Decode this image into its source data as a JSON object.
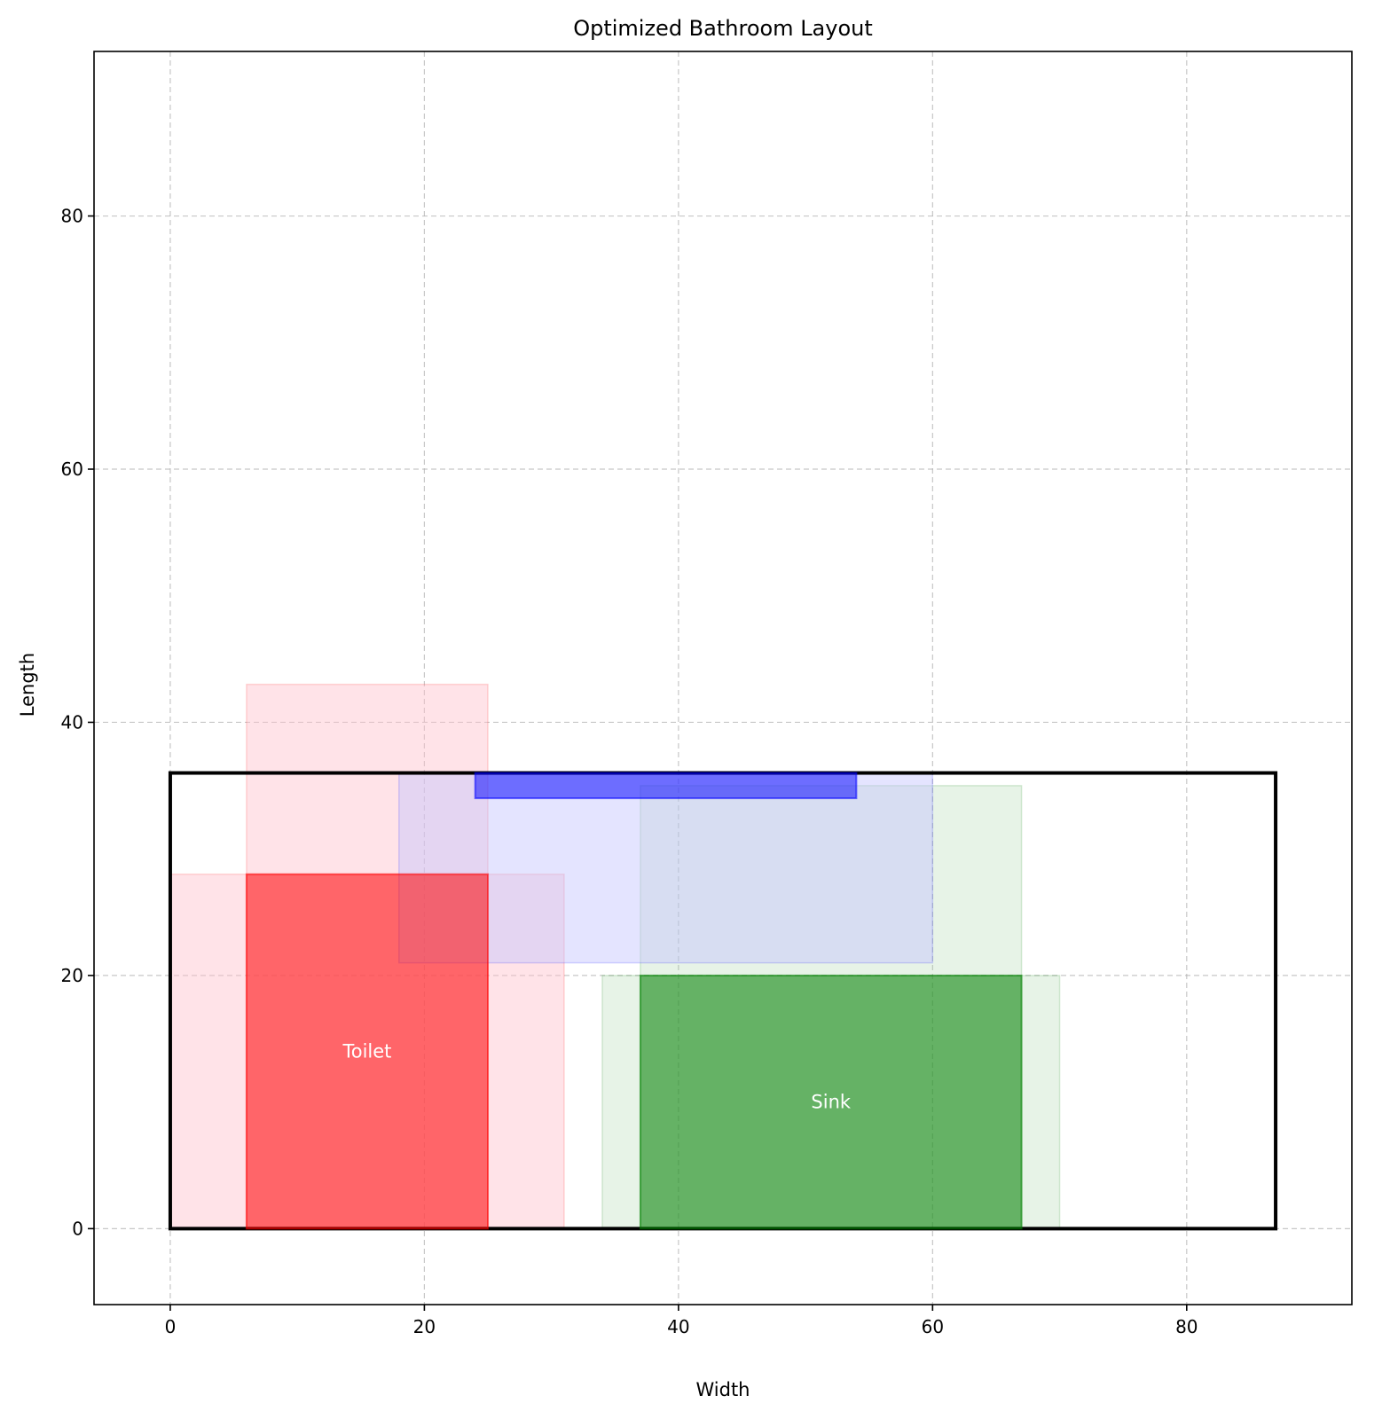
{
  "chart_data": {
    "type": "layout",
    "title": "Optimized Bathroom Layout",
    "xlabel": "Width",
    "ylabel": "Length",
    "xlim": [
      -6,
      93
    ],
    "ylim": [
      -6,
      93
    ],
    "xticks": [
      0,
      20,
      40,
      60,
      80
    ],
    "yticks": [
      0,
      20,
      40,
      60,
      80
    ],
    "grid": true,
    "room": {
      "x": 0,
      "y": 0,
      "width": 87,
      "length": 36,
      "color": "#000000"
    },
    "fixtures": [
      {
        "label": "Toilet",
        "color": "#ff0000",
        "rect": {
          "x": 6,
          "y": 0,
          "width": 19,
          "length": 28
        },
        "clearance": [
          {
            "x": 0,
            "y": 0,
            "width": 31,
            "length": 28
          },
          {
            "x": 6,
            "y": 0,
            "width": 19,
            "length": 43
          }
        ]
      },
      {
        "label": "Sink",
        "color": "#008000",
        "rect": {
          "x": 37,
          "y": 0,
          "width": 30,
          "length": 20
        },
        "clearance": [
          {
            "x": 34,
            "y": 0,
            "width": 36,
            "length": 20
          },
          {
            "x": 37,
            "y": 0,
            "width": 30,
            "length": 35
          }
        ]
      },
      {
        "label": "",
        "color": "#0000ff",
        "rect": {
          "x": 24,
          "y": 34,
          "width": 30,
          "length": 2
        },
        "clearance": [
          {
            "x": 18,
            "y": 21,
            "width": 42,
            "length": 15
          }
        ]
      }
    ],
    "clearance_colors": {
      "#ff0000": "#ffc0cb",
      "#008000": "#90c890",
      "#0000ff": "#c4c4ff"
    }
  }
}
